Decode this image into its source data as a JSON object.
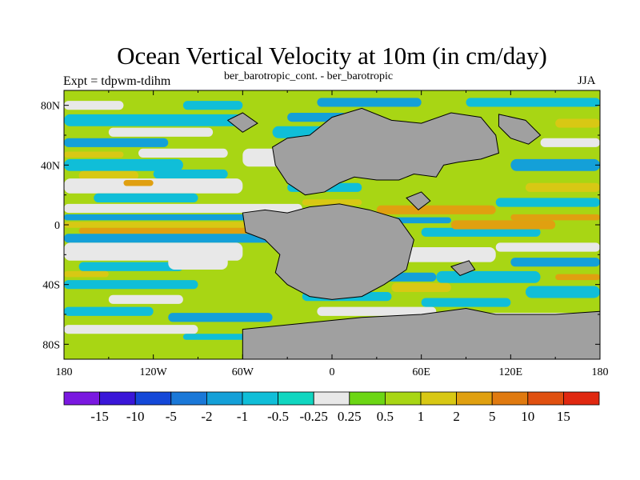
{
  "chart_data": {
    "type": "heatmap",
    "title": "Ocean Vertical Velocity at 10m (in cm/day)",
    "left_label": "Expt = tdpwm-tdihm",
    "center_label": "ber_barotropic_cont. - ber_barotropic",
    "right_label": "JJA",
    "x_ticks": [
      {
        "value": -180,
        "label": "180"
      },
      {
        "value": -120,
        "label": "120W"
      },
      {
        "value": -60,
        "label": "60W"
      },
      {
        "value": 0,
        "label": "0"
      },
      {
        "value": 60,
        "label": "60E"
      },
      {
        "value": 120,
        "label": "120E"
      },
      {
        "value": 180,
        "label": "180"
      }
    ],
    "y_ticks": [
      {
        "value": 80,
        "label": "80N"
      },
      {
        "value": 40,
        "label": "40N"
      },
      {
        "value": 0,
        "label": "0"
      },
      {
        "value": -40,
        "label": "40S"
      },
      {
        "value": -80,
        "label": "80S"
      }
    ],
    "xlim": [
      -180,
      180
    ],
    "ylim": [
      -90,
      90
    ],
    "colorbar": {
      "labels": [
        "-15",
        "-10",
        "-5",
        "-2",
        "-1",
        "-0.5",
        "-0.25",
        "0.25",
        "0.5",
        "1",
        "2",
        "5",
        "10",
        "15"
      ],
      "colors": [
        "#7a18e0",
        "#3a16d8",
        "#1448d8",
        "#1a78d8",
        "#14a0d8",
        "#10bed8",
        "#10d6c0",
        "#e8e8e8",
        "#6cd614",
        "#a8d614",
        "#d8c814",
        "#e0a010",
        "#e07a10",
        "#e05010",
        "#e02810"
      ]
    },
    "land_color": "#a0a0a0",
    "field_colors": {
      "pos1": "#a8d614",
      "pos2": "#6cd614",
      "pos3": "#d8c814",
      "pos4": "#e0a010",
      "neg1": "#10bed8",
      "neg2": "#14a0d8",
      "neg3": "#1a78d8",
      "neutral": "#e8e8e8"
    }
  }
}
